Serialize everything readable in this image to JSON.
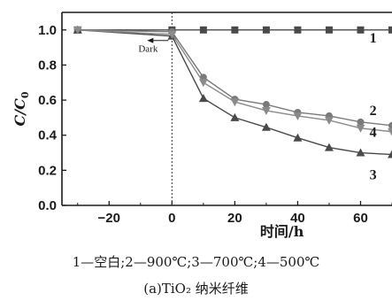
{
  "chart_data": {
    "type": "line",
    "xlabel": "时间/h",
    "ylabel": "C/C0",
    "ylabel_main": "C",
    "ylabel_sub": "0",
    "xlim": [
      -35,
      70
    ],
    "ylim": [
      0,
      1.1
    ],
    "xticks": [
      -20,
      0,
      20,
      40,
      60
    ],
    "xtick_labels": [
      "−20",
      "0",
      "20",
      "40",
      "60"
    ],
    "yticks": [
      0,
      0.2,
      0.4,
      0.6,
      0.8,
      1.0
    ],
    "ytick_labels": [
      "0.0",
      "0.2",
      "0.4",
      "0.6",
      "0.8",
      "1.0"
    ],
    "annotation": {
      "text": "Dark",
      "x": 0
    },
    "series": [
      {
        "name": "1",
        "color": "#4a4a4a",
        "marker": "square",
        "x": [
          -30,
          0,
          10,
          20,
          30,
          40,
          50,
          60,
          70
        ],
        "y": [
          1.0,
          1.0,
          1.0,
          1.0,
          1.0,
          1.0,
          1.0,
          1.0,
          1.0
        ]
      },
      {
        "name": "2",
        "color": "#7a7a7a",
        "marker": "circle",
        "x": [
          -30,
          0,
          10,
          20,
          30,
          40,
          50,
          60,
          70
        ],
        "y": [
          1.0,
          0.99,
          0.73,
          0.605,
          0.575,
          0.53,
          0.51,
          0.475,
          0.455
        ]
      },
      {
        "name": "3",
        "color": "#4a4a4a",
        "marker": "triangle-up",
        "x": [
          -30,
          0,
          10,
          20,
          30,
          40,
          50,
          60,
          70
        ],
        "y": [
          1.0,
          0.965,
          0.61,
          0.5,
          0.445,
          0.385,
          0.33,
          0.3,
          0.29
        ]
      },
      {
        "name": "4",
        "color": "#8a8a8a",
        "marker": "triangle-down",
        "x": [
          -30,
          0,
          10,
          20,
          30,
          40,
          50,
          60,
          70
        ],
        "y": [
          1.0,
          0.975,
          0.7,
          0.59,
          0.54,
          0.51,
          0.485,
          0.44,
          0.42
        ]
      }
    ]
  },
  "legend_text": "1—空白;2—900℃;3—700℃;4—500℃",
  "caption": "(a)TiO₂ 纳米纤维"
}
